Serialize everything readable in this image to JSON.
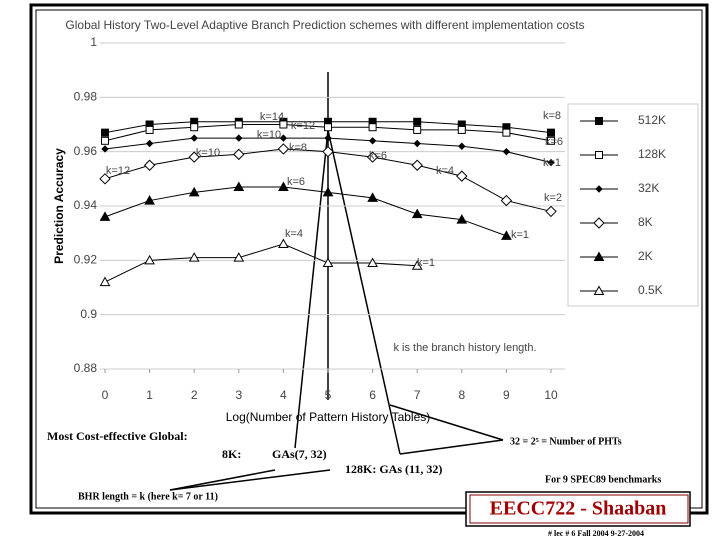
{
  "chart_data": {
    "type": "line",
    "title": "Global History Two-Level Adaptive Branch Prediction schemes with different implementation costs",
    "x_label": "Log(Number of Pattern History Tables)",
    "y_label": "Prediction Accuracy",
    "x": [
      0,
      1,
      2,
      3,
      4,
      5,
      6,
      7,
      8,
      9,
      10
    ],
    "xlim": [
      0,
      10
    ],
    "xticks": [
      0,
      1,
      2,
      3,
      4,
      5,
      6,
      7,
      8,
      9,
      10
    ],
    "ylim": [
      0.88,
      1
    ],
    "yticks": [
      0.88,
      0.9,
      0.92,
      0.94,
      0.96,
      0.98,
      1
    ],
    "grid": true,
    "legend": "right",
    "series": [
      {
        "name": "512K",
        "color": "#000000",
        "marker": "square",
        "filled": true,
        "values": [
          0.967,
          0.97,
          0.971,
          0.971,
          0.971,
          0.971,
          0.971,
          0.971,
          0.97,
          0.969,
          0.967
        ]
      },
      {
        "name": "128K",
        "color": "#000000",
        "marker": "square",
        "filled": false,
        "values": [
          0.964,
          0.968,
          0.969,
          0.97,
          0.97,
          0.969,
          0.969,
          0.968,
          0.968,
          0.967,
          0.964
        ]
      },
      {
        "name": "32K",
        "color": "#000000",
        "marker": "diamond-small",
        "filled": true,
        "values": [
          0.961,
          0.963,
          0.965,
          0.965,
          0.965,
          0.965,
          0.964,
          0.963,
          0.962,
          0.96,
          0.956
        ]
      },
      {
        "name": "8K",
        "color": "#000000",
        "marker": "diamond",
        "filled": false,
        "values": [
          0.95,
          0.955,
          0.958,
          0.959,
          0.961,
          0.96,
          0.958,
          0.955,
          0.951,
          0.942,
          0.938
        ]
      },
      {
        "name": "2K",
        "color": "#000000",
        "marker": "triangle",
        "filled": true,
        "values": [
          0.936,
          0.942,
          0.945,
          0.947,
          0.947,
          0.945,
          0.943,
          0.937,
          0.935,
          0.929,
          null
        ]
      },
      {
        "name": "0.5K",
        "color": "#000000",
        "marker": "triangle",
        "filled": false,
        "values": [
          0.912,
          0.92,
          0.921,
          0.921,
          0.926,
          0.919,
          0.919,
          0.918,
          null,
          null,
          null
        ]
      }
    ],
    "annotations": [
      "k=14",
      "k=12",
      "k=10",
      "k=10",
      "k=12",
      "k=8",
      "k=6",
      "k=6",
      "k=4",
      "k=4",
      "k=1",
      "k=1",
      "k=8",
      "k=6",
      "k=1",
      "k=2",
      "k is the branch history length."
    ]
  },
  "slide": {
    "cost_effective": "Most Cost-effective Global:",
    "label_8k": "8K:",
    "gas_8k": "GAs(7, 32)",
    "gas_128k": "128K:  GAs (11, 32)",
    "pht_note": "32 = 2⁵ = Number of PHTs",
    "benchmarks": "For 9 SPEC89 benchmarks",
    "bhr_note": "BHR length = k  (here k= 7 or 11)",
    "footer_title": "EECC722 - Shaaban",
    "footer_info": "#  lec # 6   Fall 2004   9-27-2004"
  }
}
